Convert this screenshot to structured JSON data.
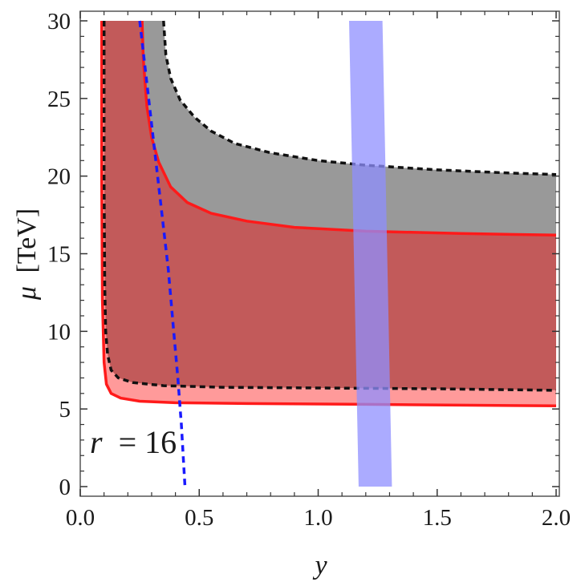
{
  "chart_data": {
    "type": "area",
    "xlabel": "y",
    "ylabel_symbol": "μ",
    "ylabel_unit": "[TeV]",
    "xlim": [
      0,
      2.0
    ],
    "ylim": [
      0,
      30
    ],
    "x_ticks": [
      "0.0",
      "0.5",
      "1.0",
      "1.5",
      "2.0"
    ],
    "y_ticks": [
      "0",
      "5",
      "10",
      "15",
      "20",
      "25",
      "30"
    ],
    "grid": false,
    "legend": "none",
    "annotation_var": "r",
    "annotation_eq": "= 16",
    "colors": {
      "gray_band": "#999999",
      "red_band": "#c25a5a",
      "pink_band": "#ff9a9a",
      "red_curve": "#ff1a1a",
      "black_dashed": "#111111",
      "blue_dashed": "#1a1aff",
      "blue_band": "#8f8fff"
    },
    "series": [
      {
        "kind": "black-dashed-upper",
        "points": [
          [
            0.35,
            30
          ],
          [
            0.36,
            27.8
          ],
          [
            0.38,
            26.3
          ],
          [
            0.42,
            24.9
          ],
          [
            0.48,
            23.8
          ],
          [
            0.55,
            22.9
          ],
          [
            0.65,
            22.1
          ],
          [
            0.8,
            21.5
          ],
          [
            1.0,
            21.0
          ],
          [
            1.2,
            20.7
          ],
          [
            1.5,
            20.4
          ],
          [
            1.8,
            20.2
          ],
          [
            2.0,
            20.1
          ]
        ]
      },
      {
        "kind": "red-solid-upper",
        "points": [
          [
            0.26,
            30
          ],
          [
            0.265,
            27.5
          ],
          [
            0.28,
            24.5
          ],
          [
            0.3,
            22.5
          ],
          [
            0.33,
            20.9
          ],
          [
            0.38,
            19.3
          ],
          [
            0.45,
            18.3
          ],
          [
            0.55,
            17.6
          ],
          [
            0.7,
            17.1
          ],
          [
            0.9,
            16.7
          ],
          [
            1.2,
            16.45
          ],
          [
            1.6,
            16.3
          ],
          [
            2.0,
            16.2
          ]
        ]
      },
      {
        "kind": "black-dashed-lower",
        "points": [
          [
            0.1,
            30
          ],
          [
            0.1,
            20
          ],
          [
            0.103,
            13
          ],
          [
            0.107,
            10
          ],
          [
            0.115,
            8.5
          ],
          [
            0.13,
            7.5
          ],
          [
            0.16,
            7.0
          ],
          [
            0.22,
            6.7
          ],
          [
            0.35,
            6.5
          ],
          [
            0.6,
            6.4
          ],
          [
            1.0,
            6.35
          ],
          [
            1.5,
            6.3
          ],
          [
            2.0,
            6.2
          ]
        ]
      },
      {
        "kind": "red-solid-lower",
        "points": [
          [
            0.09,
            30
          ],
          [
            0.09,
            20
          ],
          [
            0.093,
            12
          ],
          [
            0.1,
            8.0
          ],
          [
            0.11,
            6.6
          ],
          [
            0.13,
            6.0
          ],
          [
            0.17,
            5.7
          ],
          [
            0.25,
            5.5
          ],
          [
            0.4,
            5.4
          ],
          [
            0.7,
            5.35
          ],
          [
            1.2,
            5.3
          ],
          [
            2.0,
            5.2
          ]
        ]
      },
      {
        "kind": "blue-dashed",
        "points": [
          [
            0.25,
            30
          ],
          [
            0.28,
            26
          ],
          [
            0.31,
            22
          ],
          [
            0.34,
            18
          ],
          [
            0.37,
            14
          ],
          [
            0.39,
            10.5
          ],
          [
            0.41,
            7
          ],
          [
            0.425,
            4
          ],
          [
            0.44,
            0
          ]
        ]
      },
      {
        "kind": "blue-band",
        "left_edge": [
          [
            1.13,
            30
          ],
          [
            1.17,
            0
          ]
        ],
        "right_edge": [
          [
            1.27,
            30
          ],
          [
            1.31,
            0
          ]
        ]
      }
    ]
  }
}
